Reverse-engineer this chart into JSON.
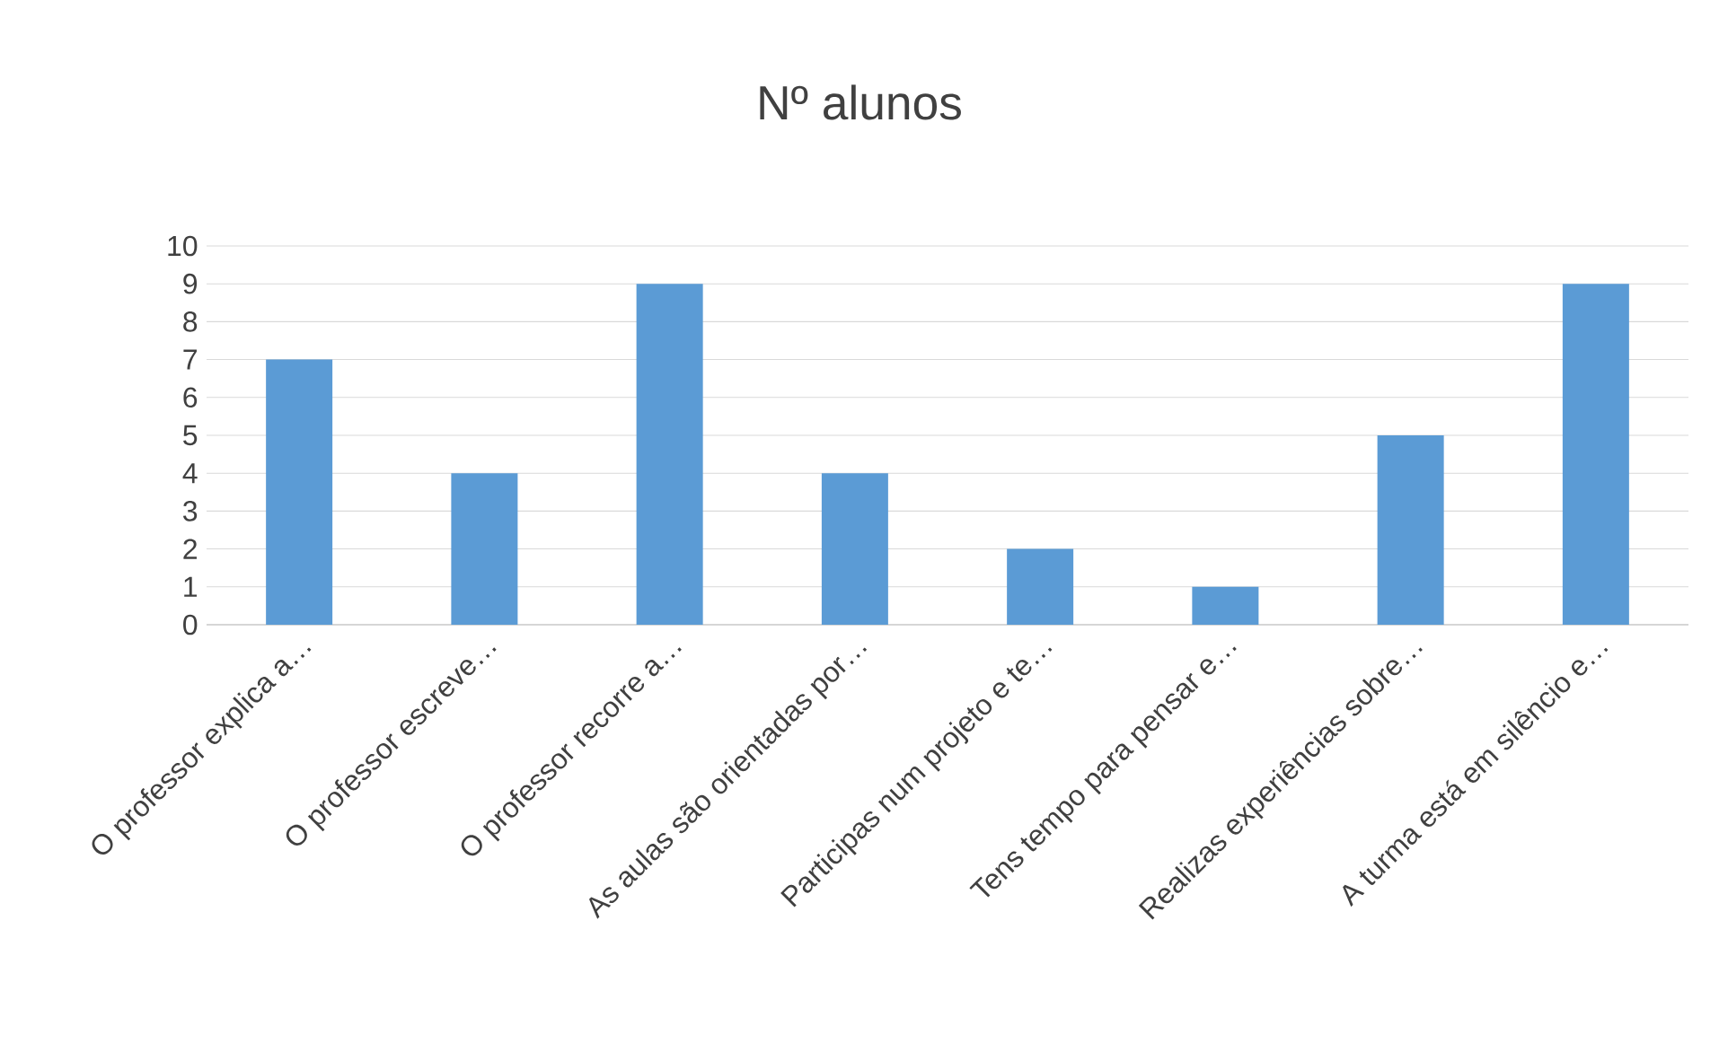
{
  "chart_data": {
    "type": "bar",
    "title": "Nº alunos",
    "categories": [
      "O professor explica a…",
      "O professor escreve…",
      "O professor recorre a…",
      "As aulas são orientadas por…",
      "Participas num projeto e te…",
      "Tens tempo para pensar e…",
      "Realizas experiências sobre…",
      "A turma está em silêncio e…"
    ],
    "values": [
      7,
      4,
      9,
      4,
      2,
      1,
      5,
      9
    ],
    "color": "#5b9bd5",
    "ylim": [
      0,
      10
    ],
    "yticks": [
      0,
      1,
      2,
      3,
      4,
      5,
      6,
      7,
      8,
      9,
      10
    ],
    "grid": "y"
  }
}
